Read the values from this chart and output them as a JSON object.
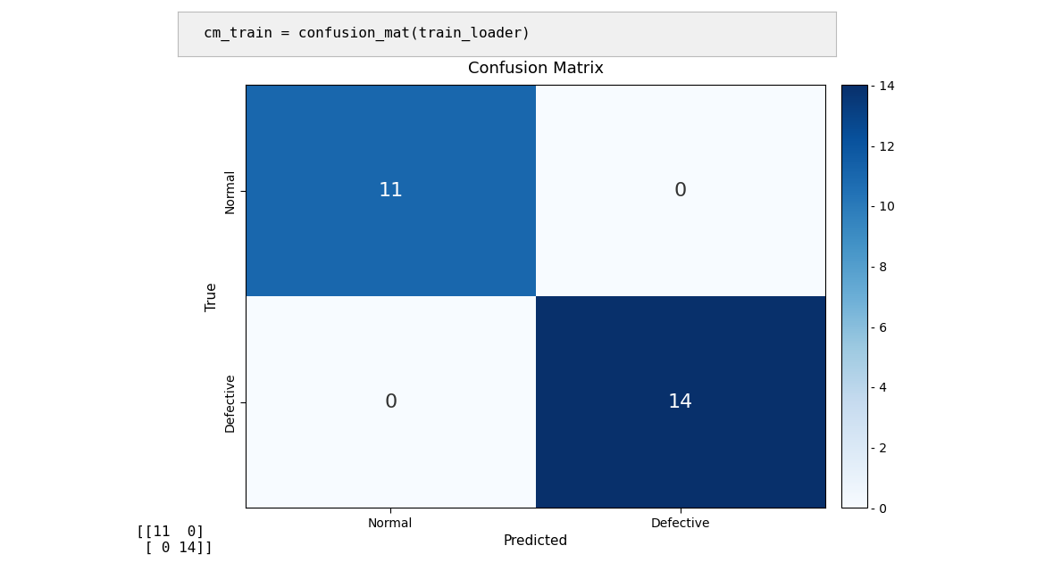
{
  "title": "Confusion Matrix",
  "matrix": [
    [
      11,
      0
    ],
    [
      0,
      14
    ]
  ],
  "x_labels": [
    "Normal",
    "Defective"
  ],
  "y_labels": [
    "Normal",
    "Defective"
  ],
  "xlabel": "Predicted",
  "ylabel": "True",
  "cmap": "Blues",
  "vmin": 0,
  "vmax": 14,
  "colorbar_ticks": [
    0,
    2,
    4,
    6,
    8,
    10,
    12,
    14
  ],
  "colorbar_tick_labels": [
    "- 0",
    "- 2",
    "- 4",
    "- 6",
    "- 8",
    "- 10",
    "- 12",
    "- 14"
  ],
  "text_color_threshold": 7,
  "white_text_color": "white",
  "dark_text_color": "#333333",
  "title_fontsize": 13,
  "label_fontsize": 11,
  "tick_fontsize": 10,
  "annotation_fontsize": 16,
  "code_text": "cm_train = confusion_mat(train_loader)",
  "array_text": "[[11  0]\n [ 0 14]]",
  "background_color": "white",
  "code_box_color": "#f0f0f0",
  "code_box_edge_color": "#bbbbbb"
}
